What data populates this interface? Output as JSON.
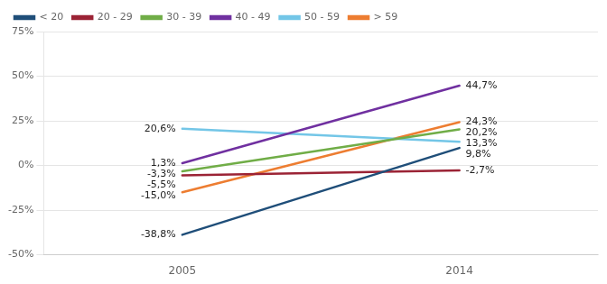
{
  "chart_data": {
    "type": "line",
    "categories": [
      "2005",
      "2014"
    ],
    "series": [
      {
        "name": "< 20",
        "color": "#1F4E79",
        "values": [
          -38.8,
          9.8
        ],
        "value_labels": [
          "-38,8%",
          "9,8%"
        ]
      },
      {
        "name": "20 - 29",
        "color": "#9B2335",
        "values": [
          -5.5,
          -2.7
        ],
        "value_labels": [
          "-5,5%",
          "-2,7%"
        ]
      },
      {
        "name": "30 - 39",
        "color": "#70AD47",
        "values": [
          -3.3,
          20.2
        ],
        "value_labels": [
          "-3,3%",
          "20,2%"
        ]
      },
      {
        "name": "40 - 49",
        "color": "#7030A0",
        "values": [
          1.3,
          44.7
        ],
        "value_labels": [
          "1,3%",
          "44,7%"
        ]
      },
      {
        "name": "50 - 59",
        "color": "#73C6E7",
        "values": [
          20.6,
          13.3
        ],
        "value_labels": [
          "20,6%",
          "13,3%"
        ]
      },
      {
        "name": "> 59",
        "color": "#ED7D31",
        "values": [
          -15.0,
          24.3
        ],
        "value_labels": [
          "-15,0%",
          "24,3%"
        ]
      }
    ],
    "ylim": [
      -50,
      75
    ],
    "yticks": [
      {
        "value": -50,
        "label": "-50%"
      },
      {
        "value": -25,
        "label": "-25%"
      },
      {
        "value": 0,
        "label": "0%"
      },
      {
        "value": 25,
        "label": "25%"
      },
      {
        "value": 50,
        "label": "50%"
      },
      {
        "value": 75,
        "label": "75%"
      }
    ],
    "grid": "y",
    "legend": "upper left",
    "data_labels": true
  }
}
